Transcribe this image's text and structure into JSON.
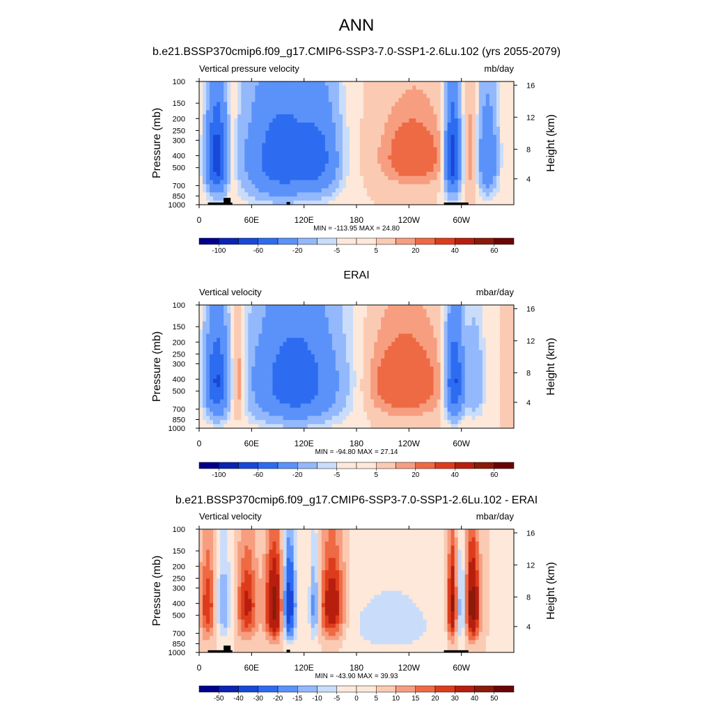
{
  "figure": {
    "title": "ANN",
    "subtitle": "b.e21.BSSP370cmip6.f09_g17.CMIP6-SSP3-7.0-SSP1-2.6Lu.102 (yrs 2055-2079)"
  },
  "chart_data": [
    {
      "type": "heatmap",
      "panel_title": "",
      "left_label": "Vertical pressure velocity",
      "right_label": "mb/day",
      "xlabel": "",
      "ylabel": "Pressure (mb)",
      "y2label": "Height (km)",
      "x_ticks": [
        "0",
        "60E",
        "120E",
        "180",
        "120W",
        "60W"
      ],
      "y_ticks": [
        "100",
        "150",
        "200",
        "250",
        "300",
        "400",
        "500",
        "700",
        "850",
        "1000"
      ],
      "y2_ticks": [
        "16",
        "12",
        "8",
        "4"
      ],
      "stats": "MIN = -113.95  MAX =  24.80",
      "colorbar_labels": [
        "-100",
        "-60",
        "-20",
        "-5",
        "5",
        "20",
        "40",
        "60"
      ],
      "ylim": [
        1000,
        100
      ],
      "xlim": [
        0,
        355
      ],
      "colorscale": "blue-white-red"
    },
    {
      "type": "heatmap",
      "panel_title": "ERAI",
      "left_label": "Vertical velocity",
      "right_label": "mbar/day",
      "xlabel": "",
      "ylabel": "Pressure (mb)",
      "y2label": "Height (km)",
      "x_ticks": [
        "0",
        "60E",
        "120E",
        "180",
        "120W",
        "60W"
      ],
      "y_ticks": [
        "100",
        "150",
        "200",
        "250",
        "300",
        "400",
        "500",
        "700",
        "850",
        "1000"
      ],
      "y2_ticks": [
        "16",
        "12",
        "8",
        "4"
      ],
      "stats": "MIN = -94.80  MAX = 27.14",
      "colorbar_labels": [
        "-100",
        "-60",
        "-20",
        "-5",
        "5",
        "20",
        "40",
        "60"
      ],
      "ylim": [
        1000,
        100
      ],
      "xlim": [
        0,
        355
      ],
      "colorscale": "blue-white-red"
    },
    {
      "type": "heatmap",
      "panel_title": "b.e21.BSSP370cmip6.f09_g17.CMIP6-SSP3-7.0-SSP1-2.6Lu.102 - ERAI",
      "left_label": "Vertical velocity",
      "right_label": "mbar/day",
      "xlabel": "",
      "ylabel": "Pressure (mb)",
      "y2label": "Height (km)",
      "x_ticks": [
        "0",
        "60E",
        "120E",
        "180",
        "120W",
        "60W"
      ],
      "y_ticks": [
        "100",
        "150",
        "200",
        "250",
        "300",
        "400",
        "500",
        "700",
        "850",
        "1000"
      ],
      "y2_ticks": [
        "16",
        "12",
        "8",
        "4"
      ],
      "stats": "MIN = -43.90  MAX = 39.93",
      "colorbar_labels": [
        "-50",
        "-40",
        "-30",
        "-20",
        "-15",
        "-10",
        "-5",
        "0",
        "5",
        "10",
        "15",
        "20",
        "30",
        "40",
        "50"
      ],
      "ylim": [
        1000,
        100
      ],
      "xlim": [
        0,
        355
      ],
      "colorscale": "blue-white-red"
    }
  ],
  "colors": {
    "palette": [
      "#00008b",
      "#0a24b4",
      "#1848d8",
      "#2d6cf0",
      "#5a92fa",
      "#93b8fb",
      "#c9ddfb",
      "#fde8d9",
      "#fbcab3",
      "#f79e80",
      "#ee6a44",
      "#dd3c1c",
      "#b81e0e",
      "#8b1a0a",
      "#6b0505"
    ]
  }
}
